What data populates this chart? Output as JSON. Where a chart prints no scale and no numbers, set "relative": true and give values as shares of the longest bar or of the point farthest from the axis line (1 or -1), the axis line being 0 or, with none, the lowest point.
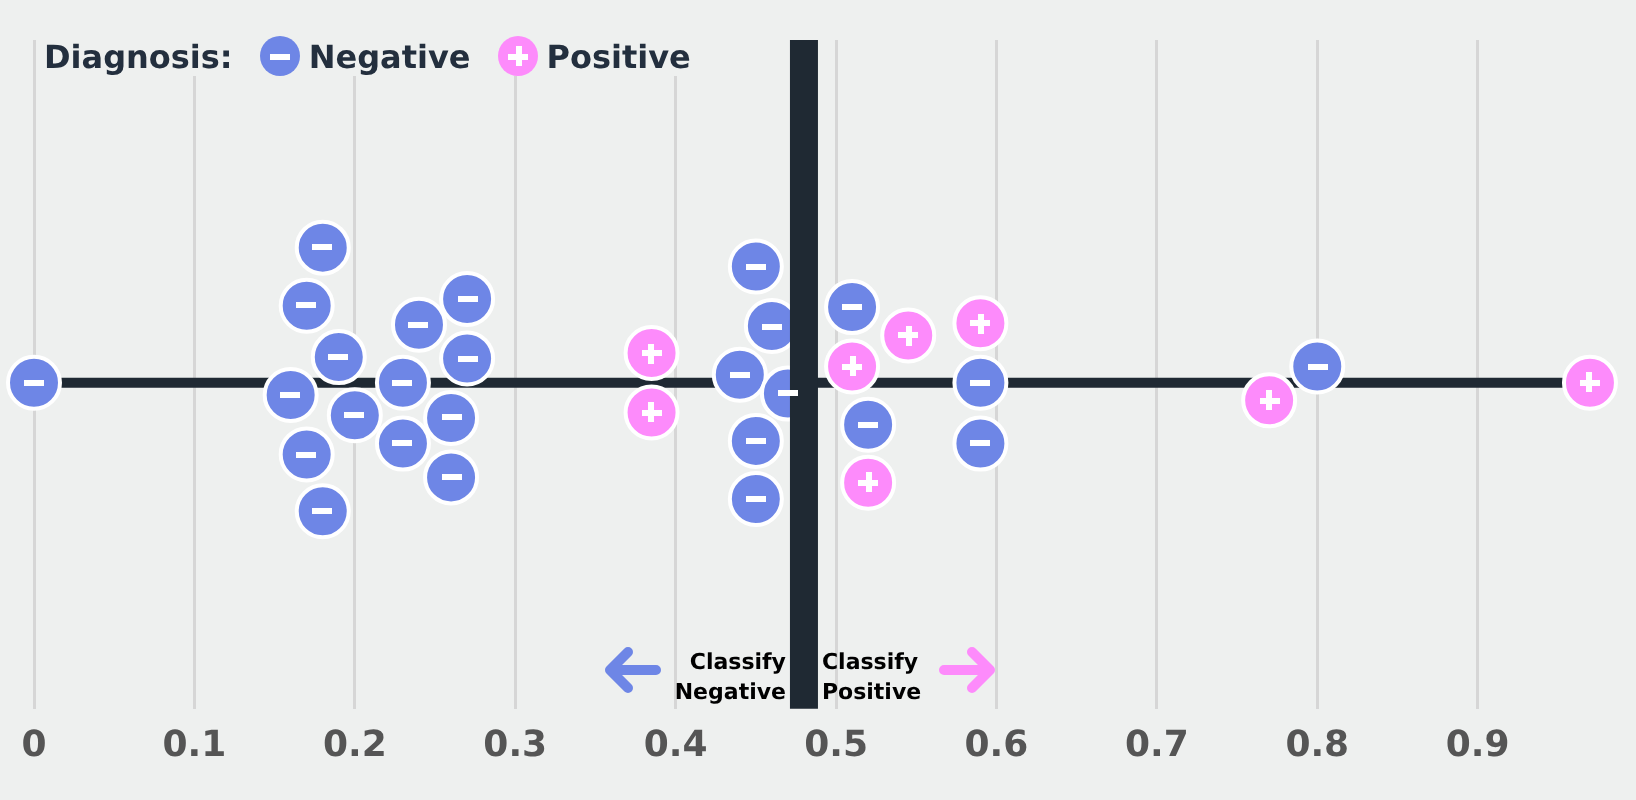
{
  "chart_data": {
    "type": "scatter",
    "legend_title": "Diagnosis:",
    "relative": true,
    "xlim": [
      0,
      0.98
    ],
    "xticks": [
      0,
      0.1,
      0.2,
      0.3,
      0.4,
      0.5,
      0.6,
      0.7,
      0.8,
      0.9
    ],
    "grid": "x",
    "legend": "top left",
    "marker": "circle",
    "series": [
      {
        "name": "Negative",
        "color": "#6e86e6",
        "x": [
          0,
          0.18,
          0.17,
          0.19,
          0.16,
          0.2,
          0.17,
          0.18,
          0.24,
          0.27,
          0.27,
          0.23,
          0.26,
          0.23,
          0.26,
          0.45,
          0.46,
          0.44,
          0.47,
          0.45,
          0.45,
          0.51,
          0.52,
          0.59,
          0.59,
          0.8
        ],
        "values": [
          0,
          1,
          0.57,
          0.19,
          -0.09,
          -0.24,
          -0.53,
          -0.95,
          0.43,
          0.62,
          0.18,
          0,
          -0.26,
          -0.45,
          -0.7,
          0.86,
          0.42,
          0.06,
          -0.08,
          -0.43,
          -0.86,
          0.56,
          -0.31,
          0,
          -0.45,
          0.12
        ]
      },
      {
        "name": "Positive",
        "color": "#fd8bfb",
        "x": [
          0.385,
          0.385,
          0.545,
          0.51,
          0.59,
          0.52,
          0.77,
          0.97
        ],
        "values": [
          0.22,
          -0.22,
          0.35,
          0.12,
          0.44,
          -0.74,
          -0.13,
          0
        ]
      }
    ],
    "ref_lines": [
      {
        "axis": "x",
        "value": 0.48,
        "color": "#1f2933"
      }
    ],
    "annotations": [
      "Classify Negative",
      "Classify Positive"
    ]
  }
}
